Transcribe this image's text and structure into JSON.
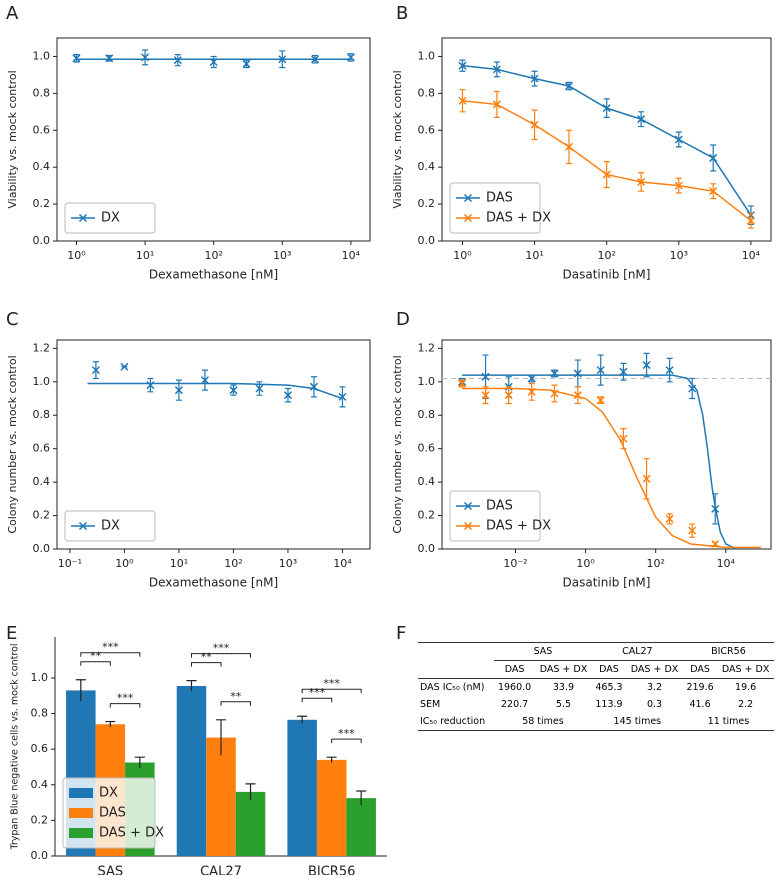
{
  "chart_data": [
    {
      "type": "scatter",
      "panel_label": "A",
      "xlabel": "Dexamethasone [nM]",
      "ylabel": "Viability vs. mock control",
      "log_x": true,
      "xlim": [
        0.52,
        19000
      ],
      "ylim": [
        0,
        1.1
      ],
      "xticks": [
        {
          "value": 1,
          "label": "10⁰"
        },
        {
          "value": 10,
          "label": "10¹"
        },
        {
          "value": 100,
          "label": "10²"
        },
        {
          "value": 1000,
          "label": "10³"
        },
        {
          "value": 10000,
          "label": "10⁴"
        }
      ],
      "yticks": [
        {
          "value": 0,
          "label": "0.0"
        },
        0.2,
        0.4,
        0.6,
        0.8,
        {
          "value": 1,
          "label": "1.0"
        }
      ],
      "legend": "lower left",
      "x": [
        1,
        3,
        10,
        30,
        100,
        300,
        1000,
        3000,
        10000
      ],
      "series": [
        {
          "name": "DX",
          "color": "#1f77b4",
          "values": [
            0.99,
            0.99,
            0.995,
            0.98,
            0.97,
            0.96,
            0.985,
            0.985,
            0.995
          ],
          "errors": [
            0.02,
            0.015,
            0.04,
            0.03,
            0.03,
            0.02,
            0.045,
            0.02,
            0.02
          ],
          "fit": {
            "x": [
              1,
              10000
            ],
            "values": [
              0.985,
              0.985
            ]
          }
        }
      ]
    },
    {
      "type": "line",
      "panel_label": "B",
      "xlabel": "Dasatinib [nM]",
      "ylabel": "Viability vs. mock control",
      "log_x": true,
      "xlim": [
        0.52,
        19000
      ],
      "ylim": [
        0,
        1.1
      ],
      "xticks": [
        {
          "value": 1,
          "label": "10⁰"
        },
        {
          "value": 10,
          "label": "10¹"
        },
        {
          "value": 100,
          "label": "10²"
        },
        {
          "value": 1000,
          "label": "10³"
        },
        {
          "value": 10000,
          "label": "10⁴"
        }
      ],
      "yticks": [
        {
          "value": 0,
          "label": "0.0"
        },
        0.2,
        0.4,
        0.6,
        0.8,
        {
          "value": 1,
          "label": "1.0"
        }
      ],
      "legend": "lower left",
      "x": [
        1,
        3,
        10,
        30,
        100,
        300,
        1000,
        3000,
        10000
      ],
      "series": [
        {
          "name": "DAS",
          "color": "#1f77b4",
          "values": [
            0.95,
            0.93,
            0.88,
            0.84,
            0.72,
            0.66,
            0.55,
            0.45,
            0.14
          ],
          "errors": [
            0.03,
            0.04,
            0.04,
            0.02,
            0.05,
            0.04,
            0.04,
            0.07,
            0.05
          ]
        },
        {
          "name": "DAS + DX",
          "color": "#ff7f0e",
          "values": [
            0.76,
            0.74,
            0.63,
            0.51,
            0.36,
            0.32,
            0.3,
            0.27,
            0.11
          ],
          "errors": [
            0.06,
            0.07,
            0.08,
            0.09,
            0.07,
            0.05,
            0.04,
            0.04,
            0.04
          ]
        }
      ]
    },
    {
      "type": "scatter",
      "panel_label": "C",
      "xlabel": "Dexamethasone [nM]",
      "ylabel": "Colony number vs. mock control",
      "log_x": true,
      "xlim": [
        0.058,
        32000
      ],
      "ylim": [
        0,
        1.25
      ],
      "xticks": [
        {
          "value": 0.1,
          "label": "10⁻¹"
        },
        {
          "value": 1,
          "label": "10⁰"
        },
        {
          "value": 10,
          "label": "10¹"
        },
        {
          "value": 100,
          "label": "10²"
        },
        {
          "value": 1000,
          "label": "10³"
        },
        {
          "value": 10000,
          "label": "10⁴"
        }
      ],
      "yticks": [
        {
          "value": 0,
          "label": "0.0"
        },
        0.2,
        0.4,
        0.6,
        0.8,
        {
          "value": 1,
          "label": "1.0"
        },
        1.2
      ],
      "legend": "lower left",
      "x": [
        0.3,
        1,
        3,
        10,
        30,
        100,
        300,
        1000,
        3000,
        10000
      ],
      "series": [
        {
          "name": "DX",
          "color": "#1f77b4",
          "values": [
            1.07,
            1.09,
            0.98,
            0.95,
            1.01,
            0.95,
            0.96,
            0.92,
            0.97,
            0.91
          ],
          "errors": [
            0.05,
            0,
            0.04,
            0.06,
            0.06,
            0.03,
            0.04,
            0.04,
            0.06,
            0.06
          ],
          "fit": {
            "x": [
              0.21,
              100,
              1000,
              3000,
              10000
            ],
            "values": [
              0.99,
              0.99,
              0.98,
              0.96,
              0.9
            ]
          }
        }
      ]
    },
    {
      "type": "scatter",
      "panel_label": "D",
      "xlabel": "Dasatinib [nM]",
      "ylabel": "Colony number vs. mock control",
      "log_x": true,
      "xlim": [
        8e-05,
        195000
      ],
      "ylim": [
        0,
        1.25
      ],
      "xticks": [
        {
          "value": 0.01,
          "label": "10⁻²"
        },
        {
          "value": 1,
          "label": "10⁰"
        },
        {
          "value": 100,
          "label": "10²"
        },
        {
          "value": 10000,
          "label": "10⁴"
        }
      ],
      "yticks": [
        {
          "value": 0,
          "label": "0.0"
        },
        0.2,
        0.4,
        0.6,
        0.8,
        {
          "value": 1,
          "label": "1.0"
        },
        1.2
      ],
      "legend": "lower left",
      "reference_line": 1.02,
      "x": [
        0.0003,
        0.0014,
        0.0064,
        0.029,
        0.13,
        0.6,
        2.7,
        12,
        55,
        250,
        1100,
        5000
      ],
      "series": [
        {
          "name": "DAS",
          "color": "#1f77b4",
          "values": [
            1.0,
            1.03,
            0.97,
            1.02,
            1.05,
            1.05,
            1.07,
            1.06,
            1.1,
            1.07,
            0.96,
            0.24
          ],
          "errors": [
            0.02,
            0.13,
            0.06,
            0.02,
            0.02,
            0.08,
            0.09,
            0.05,
            0.07,
            0.07,
            0.06,
            0.09
          ],
          "fit": {
            "x": [
              0.0003,
              300,
              800,
              1500,
              2200,
              3000,
              4000,
              5000,
              7000,
              10000,
              20000
            ],
            "values": [
              1.04,
              1.04,
              1.02,
              0.95,
              0.8,
              0.6,
              0.38,
              0.25,
              0.1,
              0.03,
              0.0
            ]
          }
        },
        {
          "name": "DAS + DX",
          "color": "#ff7f0e",
          "values": [
            0.99,
            0.92,
            0.92,
            0.94,
            0.93,
            0.92,
            0.89,
            0.66,
            0.42,
            0.18,
            0.11,
            0.03
          ],
          "errors": [
            0.02,
            0.05,
            0.05,
            0.05,
            0.05,
            0.05,
            0.02,
            0.06,
            0.12,
            0.03,
            0.04,
            0.01
          ],
          "fit": {
            "x": [
              0.0003,
              0.01,
              0.1,
              1,
              3,
              10,
              30,
              100,
              300,
              1000,
              10000,
              100000
            ],
            "values": [
              0.96,
              0.96,
              0.95,
              0.9,
              0.82,
              0.65,
              0.42,
              0.19,
              0.08,
              0.03,
              0.01,
              0.01
            ]
          }
        }
      ]
    },
    {
      "type": "bar",
      "panel_label": "E",
      "ylabel": "Trypan Blue negative cells vs. mock control",
      "ylim": [
        0,
        1.23
      ],
      "yticks": [
        {
          "value": 0,
          "label": "0.0"
        },
        0.2,
        0.4,
        0.6,
        0.8,
        {
          "value": 1,
          "label": "1.0"
        }
      ],
      "legend": "lower left",
      "categories": [
        "SAS",
        "CAL27",
        "BICR56"
      ],
      "series": [
        {
          "name": "DX",
          "color": "#1f77b4",
          "values": [
            0.93,
            0.955,
            0.765
          ],
          "errors": [
            0.06,
            0.03,
            0.02
          ]
        },
        {
          "name": "DAS",
          "color": "#ff7f0e",
          "values": [
            0.74,
            0.665,
            0.54
          ],
          "errors": [
            0.015,
            0.1,
            0.015
          ]
        },
        {
          "name": "DAS + DX",
          "color": "#2ca02c",
          "values": [
            0.525,
            0.36,
            0.325
          ],
          "errors": [
            0.03,
            0.045,
            0.04
          ]
        }
      ],
      "significance": [
        [
          "**",
          "***",
          "***"
        ],
        [
          "**",
          "***",
          "**"
        ],
        [
          "***",
          "***",
          "***"
        ]
      ]
    }
  ],
  "table": {
    "panel_label": "F",
    "groups": [
      "SAS",
      "CAL27",
      "BICR56"
    ],
    "subheaders": [
      "DAS",
      "DAS + DX",
      "DAS",
      "DAS + DX",
      "DAS",
      "DAS + DX"
    ],
    "rows": [
      {
        "label": "DAS IC₅₀ (nM)",
        "cells": [
          "1960.0",
          "33.9",
          "465.3",
          "3.2",
          "219.6",
          "19.6"
        ]
      },
      {
        "label": "SEM",
        "cells": [
          "220.7",
          "5.5",
          "113.9",
          "0.3",
          "41.6",
          "2.2"
        ]
      }
    ],
    "reduction": {
      "label": "IC₅₀ reduction",
      "cells": [
        "58 times",
        "145 times",
        "11 times"
      ]
    }
  }
}
